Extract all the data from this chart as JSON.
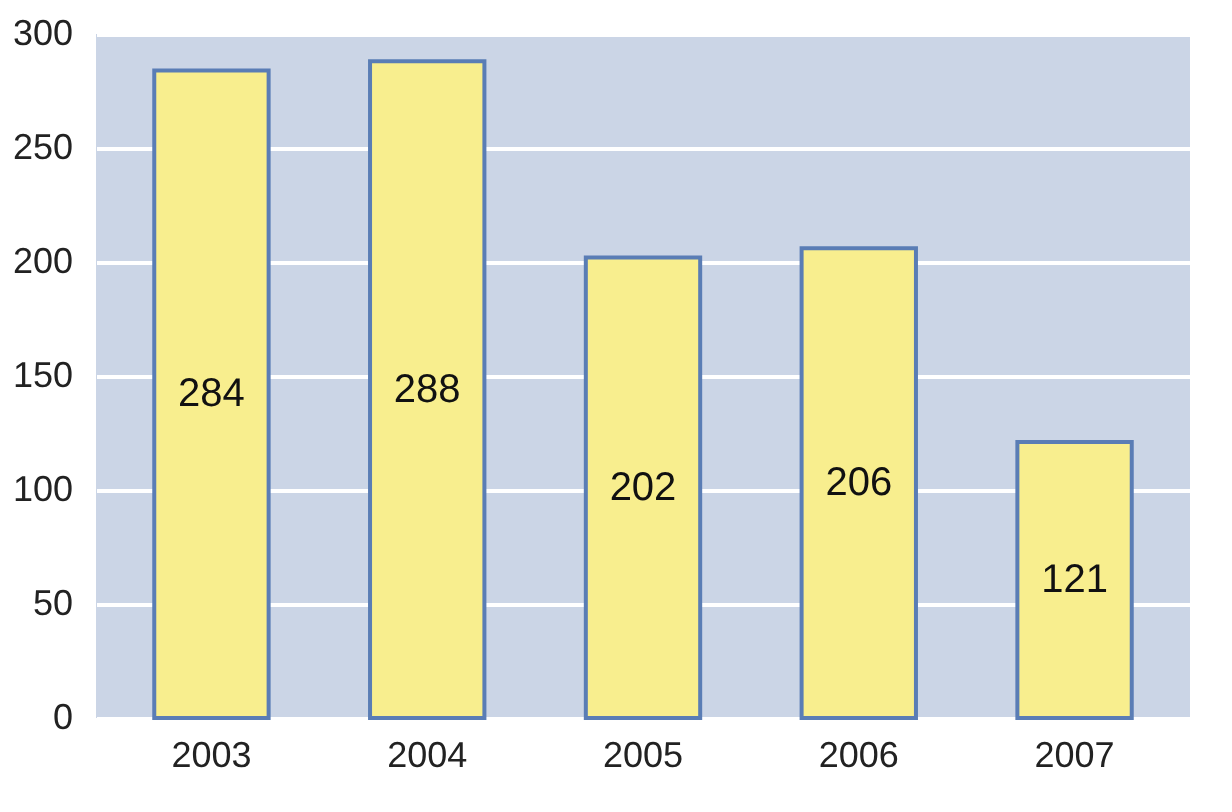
{
  "chart_data": {
    "type": "bar",
    "categories": [
      "2003",
      "2004",
      "2005",
      "2006",
      "2007"
    ],
    "values": [
      284,
      288,
      202,
      206,
      121
    ],
    "color": "#f8ee8e",
    "ylim": [
      0,
      300
    ],
    "yticks": [
      0,
      50,
      100,
      150,
      200,
      250,
      300
    ],
    "grid": "y",
    "data_labels": true
  }
}
